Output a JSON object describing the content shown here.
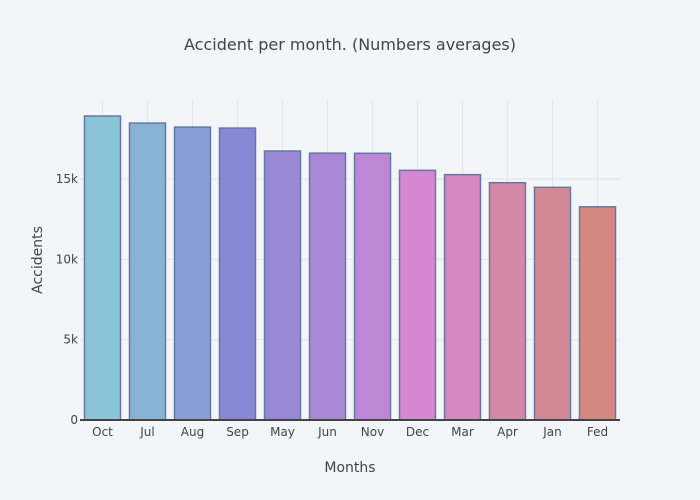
{
  "chart_data": {
    "type": "bar",
    "title": "Accident per month. (Numbers averages)",
    "xlabel": "Months",
    "ylabel": "Accidents",
    "categories": [
      "Oct",
      "Jul",
      "Aug",
      "Sep",
      "May",
      "Jun",
      "Nov",
      "Dec",
      "Mar",
      "Apr",
      "Jan",
      "Fed"
    ],
    "values": [
      18920,
      18480,
      18230,
      18170,
      16740,
      16610,
      16600,
      15540,
      15270,
      14770,
      14480,
      13270
    ],
    "colors": [
      "#89c5d6",
      "#88b3d6",
      "#889fd6",
      "#8888d6",
      "#9888d6",
      "#ab88d6",
      "#bf88d6",
      "#d488d2",
      "#d488be",
      "#d488a8",
      "#d48896",
      "#d48880"
    ],
    "bar_border_color": "#6478a0",
    "ylim": [
      0,
      20000
    ],
    "yticks": [
      0,
      5000,
      10000,
      15000
    ],
    "ytick_labels": [
      "0",
      "5k",
      "10k",
      "15k"
    ],
    "grid": true,
    "legend": "none"
  }
}
